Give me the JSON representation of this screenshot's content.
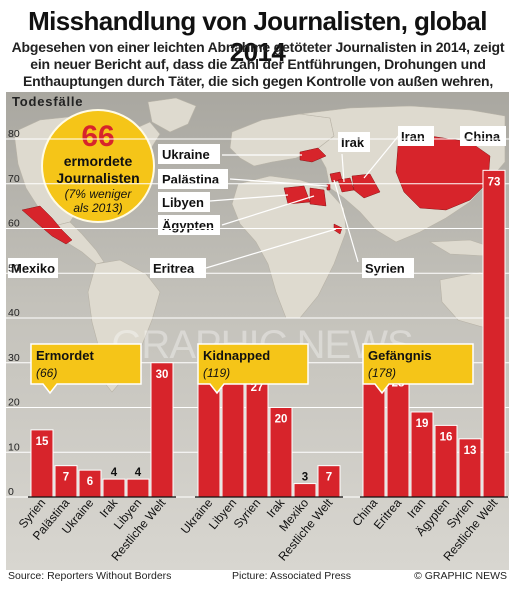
{
  "title": "Misshandlung von Journalisten, global 2014",
  "subtitle": "Abgesehen von einer leichten Abnahme getöteter Journalisten in 2014, zeigt ein neuer Bericht auf, dass die Zahl der Entführungen, Drohungen und Enthauptungen durch Täter, die sich gegen Kontrolle von außen wehren, zugenommen haben",
  "map": {
    "heading": "Todesfälle",
    "callout": {
      "number": "66",
      "line1": "ermordete",
      "line2": "Journalisten",
      "note1": "(7% weniger",
      "note2": "als 2013)"
    },
    "country_labels": [
      "Ukraine",
      "Palästina",
      "Libyen",
      "Ägypten",
      "Eritrea",
      "Mexiko",
      "Irak",
      "Iran",
      "China",
      "Syrien"
    ],
    "watermark": "GRAPHIC NEWS"
  },
  "colors": {
    "bar": "#d7242b",
    "callout_fill": "#f5c518",
    "highlight": "#d7242b",
    "land": "#dcd6cb",
    "sea": "#b9b7b0"
  },
  "chart_data": [
    {
      "type": "bar",
      "label": "Ermordet",
      "sublabel": "(66)",
      "categories": [
        "Syrien",
        "Palästina",
        "Ukraine",
        "Irak",
        "Libyen",
        "Restliche Welt"
      ],
      "values": [
        15,
        7,
        6,
        4,
        4,
        30
      ],
      "ylim": [
        0,
        80
      ],
      "yticks": [
        0,
        10,
        20,
        30,
        40,
        50,
        60,
        70,
        80
      ]
    },
    {
      "type": "bar",
      "label": "Kidnapped",
      "sublabel": "(119)",
      "categories": [
        "Ukraine",
        "Libyen",
        "Syrien",
        "Irak",
        "Mexiko",
        "Restliche Welt"
      ],
      "values": [
        33,
        29,
        27,
        20,
        3,
        7
      ],
      "ylim": [
        0,
        80
      ]
    },
    {
      "type": "bar",
      "label": "Gefängnis",
      "sublabel": "(178)",
      "categories": [
        "China",
        "Eritrea",
        "Iran",
        "Ägypten",
        "Syrien",
        "Restliche Welt"
      ],
      "values": [
        29,
        28,
        19,
        16,
        13,
        73
      ],
      "ylim": [
        0,
        80
      ]
    }
  ],
  "footer": {
    "source": "Source: Reporters Without Borders",
    "picture": "Picture: Associated Press",
    "credit": "© GRAPHIC NEWS"
  }
}
